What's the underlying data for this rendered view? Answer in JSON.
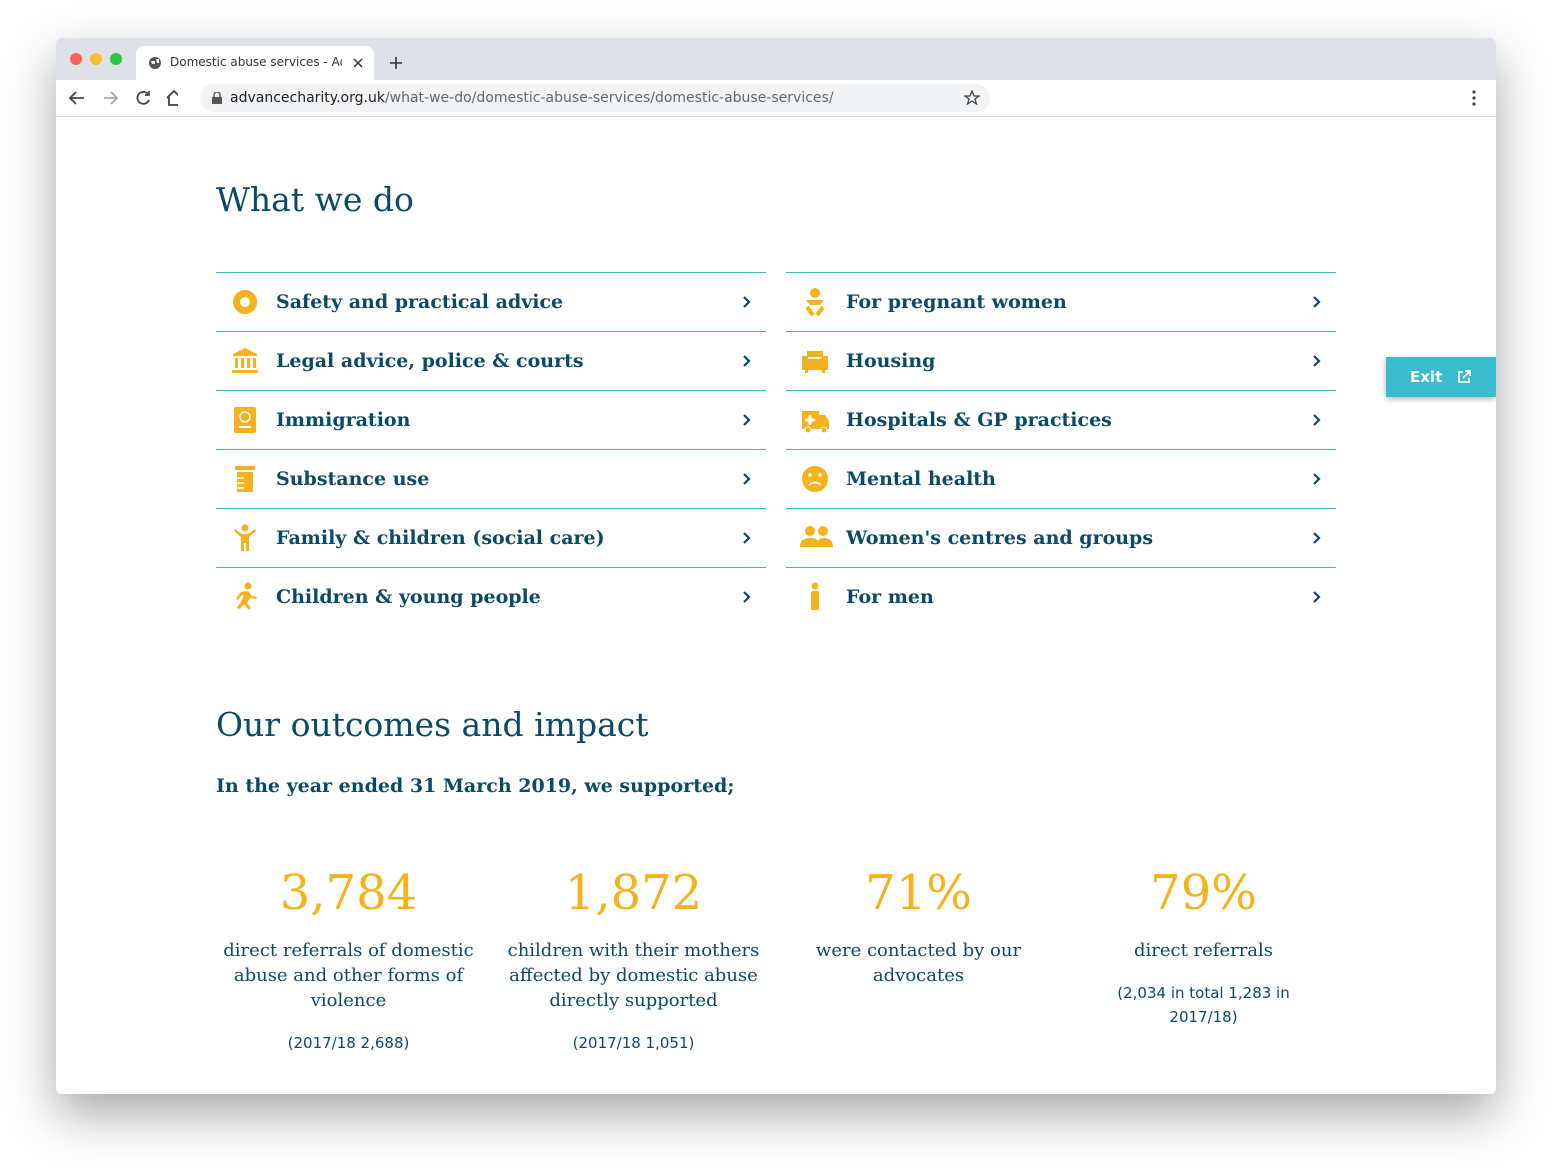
{
  "browser": {
    "tab_title": "Domestic abuse services - Adv",
    "url": {
      "host": "advancecharity.org.uk",
      "path": "/what-we-do/domestic-abuse-services/domestic-abuse-services/"
    }
  },
  "what_we_do": {
    "title": "What we do",
    "columns": [
      [
        "Safety and practical advice",
        "Legal advice, police & courts",
        "Immigration",
        "Substance use",
        "Family & children (social care)",
        "Children & young people"
      ],
      [
        "For pregnant women",
        "Housing",
        "Hospitals & GP practices",
        "Mental health",
        "Women's centres and groups",
        "For men"
      ]
    ]
  },
  "exit": "Exit",
  "outcomes": {
    "title": "Our outcomes and impact",
    "subtitle": "In the year ended 31 March 2019, we supported;",
    "stats": [
      {
        "number": "3,784",
        "description": "direct referrals of domestic abuse and other forms of violence",
        "note": "(2017/18 2,688)"
      },
      {
        "number": "1,872",
        "description": "children with their mothers affected by domestic abuse directly supported",
        "note": "(2017/18 1,051)"
      },
      {
        "number": "71%",
        "description": "were contacted by our advocates",
        "note": null
      },
      {
        "number": "79%",
        "description": "direct referrals",
        "note": "(2,034 in total 1,283 in 2017/18)"
      }
    ]
  }
}
